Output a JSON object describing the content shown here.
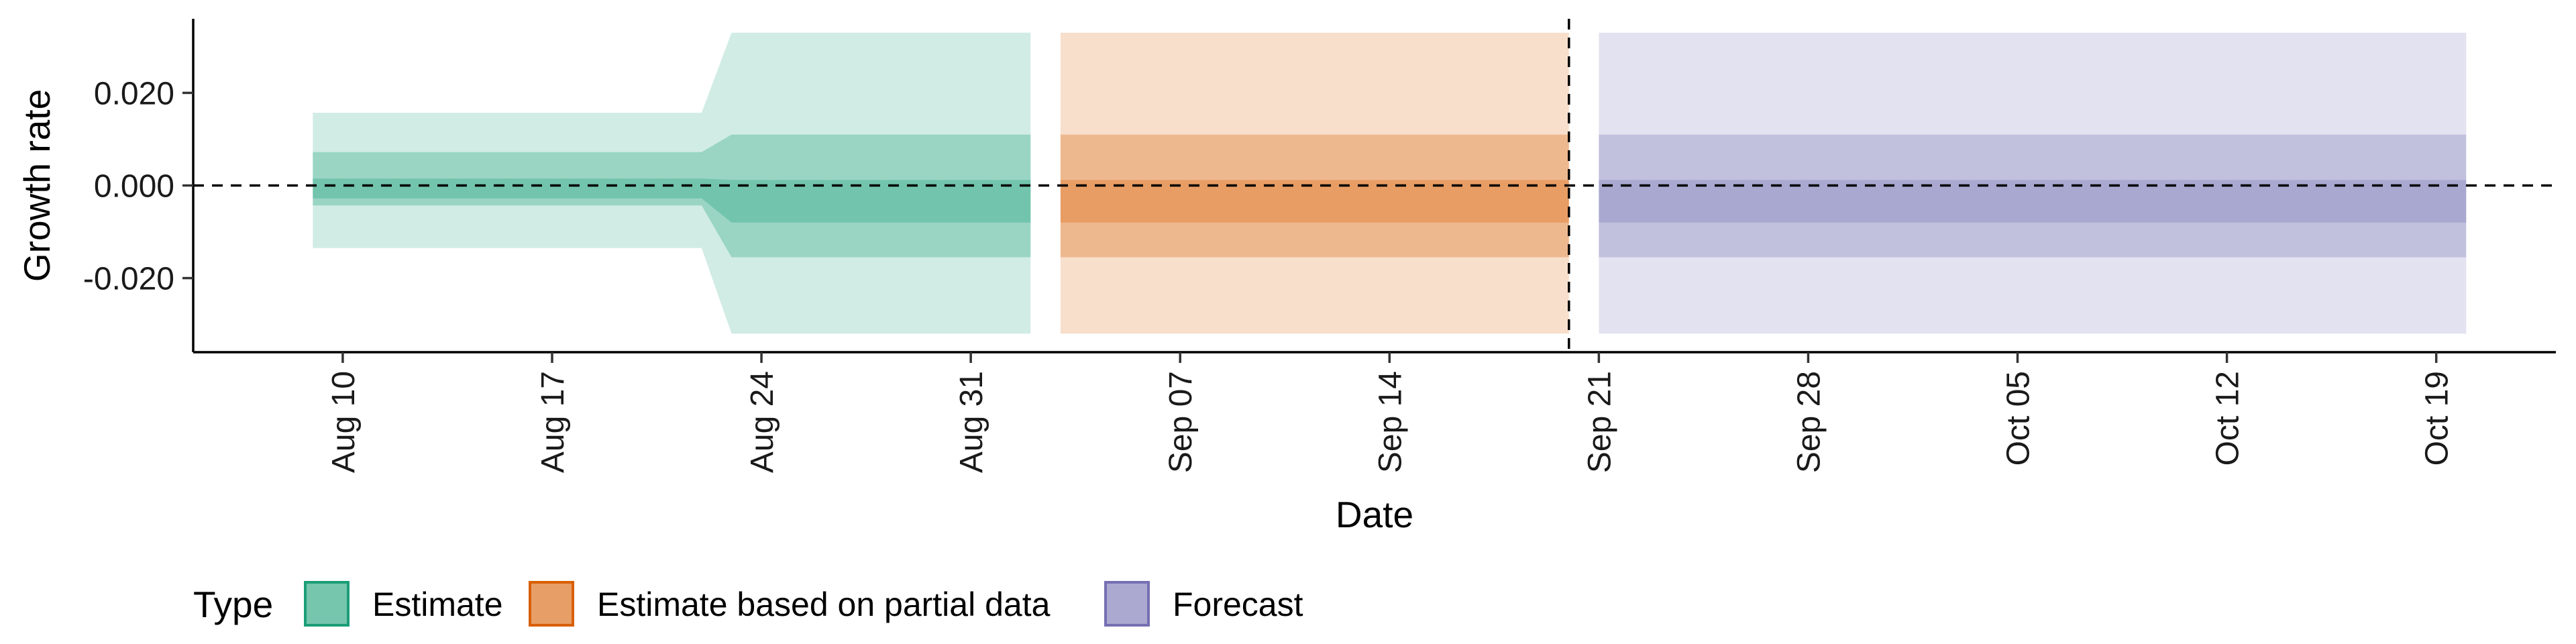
{
  "chart_data": {
    "type": "area",
    "xlabel": "Date",
    "ylabel": "Growth rate",
    "x_ticks": [
      "2020-08-10",
      "2020-08-17",
      "2020-08-24",
      "2020-08-31",
      "2020-09-07",
      "2020-09-14",
      "2020-09-21",
      "2020-09-28",
      "2020-10-05",
      "2020-10-12",
      "2020-10-19"
    ],
    "x_tick_labels": [
      "Aug 10",
      "Aug 17",
      "Aug 24",
      "Aug 31",
      "Sep 07",
      "Sep 14",
      "Sep 21",
      "Sep 28",
      "Oct 05",
      "Oct 12",
      "Oct 19"
    ],
    "y_ticks": [
      -0.02,
      0.0,
      0.02
    ],
    "y_tick_labels": [
      "-0.020",
      "0.000",
      "0.020"
    ],
    "xlim": [
      "2020-08-05",
      "2020-10-23"
    ],
    "ylim": [
      -0.036,
      0.036
    ],
    "reference_lines": {
      "horizontal_y": 0.0,
      "vertical_x": "2020-09-20"
    },
    "legend": {
      "title": "Type",
      "placement": "bottom-left"
    },
    "series": [
      {
        "name": "Estimate",
        "color": "#1B9E77",
        "x": [
          "2020-08-09",
          "2020-08-22",
          "2020-08-23",
          "2020-09-02"
        ],
        "outer_lower": [
          -0.0135,
          -0.0135,
          -0.032,
          -0.032
        ],
        "outer_upper": [
          0.0157,
          0.0157,
          0.033,
          0.033
        ],
        "middle_lower": [
          -0.0043,
          -0.0043,
          -0.0155,
          -0.0155
        ],
        "middle_upper": [
          0.0072,
          0.0072,
          0.011,
          0.011
        ],
        "inner_lower": [
          -0.0028,
          -0.0028,
          -0.008,
          -0.008
        ],
        "inner_upper": [
          0.0015,
          0.0015,
          0.0012,
          0.0012
        ]
      },
      {
        "name": "Estimate based on partial data",
        "color": "#D95F02",
        "x": [
          "2020-09-03",
          "2020-09-20"
        ],
        "outer_lower": [
          -0.032,
          -0.032
        ],
        "outer_upper": [
          0.033,
          0.033
        ],
        "middle_lower": [
          -0.0155,
          -0.0155
        ],
        "middle_upper": [
          0.011,
          0.011
        ],
        "inner_lower": [
          -0.008,
          -0.008
        ],
        "inner_upper": [
          0.0012,
          0.0012
        ]
      },
      {
        "name": "Forecast",
        "color": "#7570B3",
        "x": [
          "2020-09-21",
          "2020-10-20"
        ],
        "outer_lower": [
          -0.032,
          -0.032
        ],
        "outer_upper": [
          0.033,
          0.033
        ],
        "middle_lower": [
          -0.0155,
          -0.0155
        ],
        "middle_upper": [
          0.011,
          0.011
        ],
        "inner_lower": [
          -0.008,
          -0.008
        ],
        "inner_upper": [
          0.0012,
          0.0012
        ]
      }
    ]
  }
}
